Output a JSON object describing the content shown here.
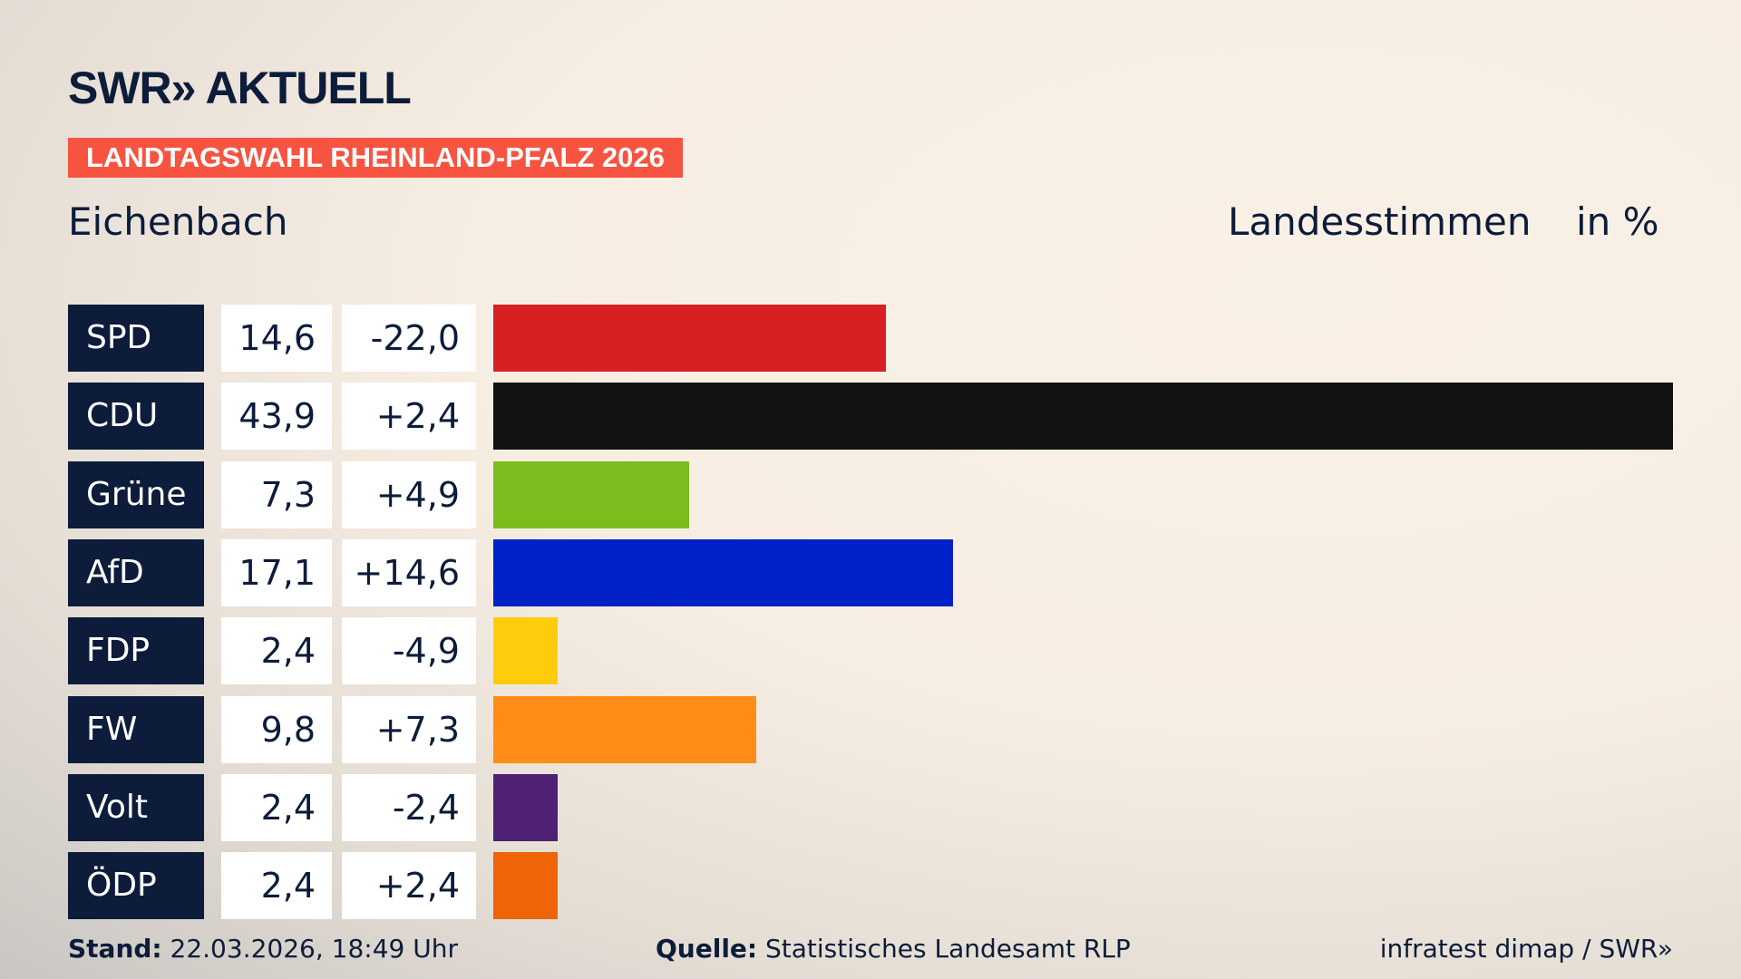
{
  "logo": "SWR» AKTUELL",
  "banner": "LANDTAGSWAHL RHEINLAND-PFALZ 2026",
  "region": "Eichenbach",
  "header_type": "Landesstimmen",
  "header_unit": "in %",
  "chart_data": {
    "type": "bar",
    "orientation": "horizontal",
    "categories": [
      "SPD",
      "CDU",
      "Grüne",
      "AfD",
      "FDP",
      "FW",
      "Volt",
      "ÖDP"
    ],
    "values": [
      14.6,
      43.9,
      7.3,
      17.1,
      2.4,
      9.8,
      2.4,
      2.4
    ],
    "value_labels": [
      "14,6",
      "43,9",
      "7,3",
      "17,1",
      "2,4",
      "9,8",
      "2,4",
      "2,4"
    ],
    "diff_labels": [
      "-22,0",
      "+2,4",
      "+4,9",
      "+14,6",
      "-4,9",
      "+7,3",
      "-2,4",
      "+2,4"
    ],
    "colors": [
      "#d81f22",
      "#121212",
      "#7bbd1d",
      "#0021c8",
      "#ffcc0b",
      "#ff8c17",
      "#4f2174",
      "#ee6407"
    ]
  },
  "footer": {
    "stand_label": "Stand:",
    "stand_value": "22.03.2026, 18:49 Uhr",
    "source_label": "Quelle:",
    "source_value": "Statistisches Landesamt RLP",
    "credit": "infratest dimap / SWR»"
  }
}
